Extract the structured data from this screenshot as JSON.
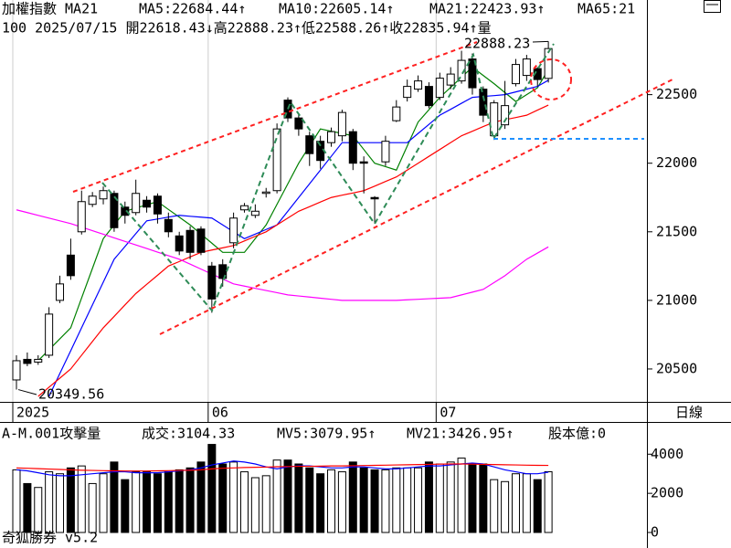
{
  "header": {
    "line1": [
      {
        "text": "加權指數 MA21",
        "color": "#000000"
      },
      {
        "text": "MA5:22684.44↑",
        "color": "#008000"
      },
      {
        "text": "MA10:22605.14↑",
        "color": "#0000ff"
      },
      {
        "text": "MA21:22423.93↑",
        "color": "#ff0000"
      },
      {
        "text": "MA65:21",
        "color": "#ff00ff"
      }
    ],
    "line2": "100 2025/07/15 開22618.43↓高22888.23↑低22588.26↑收22835.94↑量",
    "period": "日線"
  },
  "footer": "奇狐勝券 v5.2",
  "chart_data": [
    {
      "type": "candlestick",
      "open": [
        20420,
        20570,
        20550,
        20600,
        21000,
        21330,
        21500,
        21700,
        21740,
        21780,
        21680,
        21640,
        21730,
        21760,
        21590,
        21470,
        21510,
        21520,
        21250,
        21260,
        21420,
        21660,
        21620,
        21780,
        21800,
        22460,
        22330,
        22200,
        22160,
        22150,
        22200,
        22230,
        22010,
        21750,
        22010,
        22310,
        22480,
        22540,
        22560,
        22480,
        22570,
        22600,
        22760,
        22540,
        22200,
        22280,
        22580,
        22640,
        22690,
        22618.43
      ],
      "high": [
        20600,
        20620,
        20600,
        20950,
        21180,
        21450,
        21800,
        21790,
        21830,
        21800,
        21720,
        21880,
        21760,
        21780,
        21640,
        21500,
        21540,
        21540,
        21280,
        21300,
        21640,
        21710,
        21700,
        21820,
        22290,
        22480,
        22360,
        22230,
        22200,
        22260,
        22390,
        22250,
        22050,
        21760,
        22200,
        22460,
        22610,
        22640,
        22590,
        22660,
        22700,
        22820,
        22800,
        22560,
        22460,
        22600,
        22760,
        22790,
        22700,
        22888.23
      ],
      "low": [
        20349.56,
        20520,
        20530,
        20580,
        20980,
        21150,
        21480,
        21680,
        21700,
        21500,
        21560,
        21620,
        21640,
        21560,
        21460,
        21330,
        21300,
        21330,
        20910,
        21100,
        21380,
        21640,
        21600,
        21750,
        21780,
        22300,
        22200,
        21980,
        21960,
        22120,
        22160,
        21950,
        21780,
        21560,
        21980,
        22300,
        22450,
        22520,
        22400,
        22460,
        22540,
        22580,
        22500,
        22300,
        22170,
        22250,
        22560,
        22600,
        22560,
        22588.26
      ],
      "close": [
        20560,
        20540,
        20570,
        20900,
        21120,
        21180,
        21720,
        21760,
        21800,
        21530,
        21620,
        21780,
        21680,
        21630,
        21500,
        21360,
        21350,
        21350,
        21010,
        21160,
        21600,
        21690,
        21650,
        21790,
        22250,
        22330,
        22250,
        22070,
        22020,
        22230,
        22370,
        22000,
        22000,
        21740,
        22160,
        22410,
        22560,
        22600,
        22420,
        22620,
        22650,
        22750,
        22550,
        22350,
        22440,
        22420,
        22720,
        22760,
        22610,
        22835.94
      ],
      "series": [
        {
          "name": "MA5",
          "color": "#008000",
          "values": [
            null,
            null,
            20560,
            20640,
            20720,
            20800,
            21017,
            21233,
            21450,
            21550,
            21650,
            21673,
            21697,
            21720,
            21663,
            21607,
            21550,
            21483,
            21417,
            21350,
            21350,
            21350,
            21450,
            21550,
            21700,
            21850,
            22000,
            22125,
            22250,
            22233,
            22217,
            22200,
            22100,
            22000,
            21975,
            21950,
            22125,
            22300,
            22390,
            22480,
            22553,
            22627,
            22700,
            22640,
            22580,
            22515,
            22450,
            22500,
            22550,
            22684.44
          ]
        },
        {
          "name": "MA10",
          "color": "#0000ff",
          "values": [
            null,
            null,
            null,
            20300,
            20467,
            20633,
            20800,
            20967,
            21133,
            21300,
            21393,
            21487,
            21580,
            21593,
            21607,
            21620,
            21613,
            21607,
            21600,
            21550,
            21500,
            21450,
            21483,
            21517,
            21550,
            21650,
            21750,
            21850,
            21950,
            22050,
            22150,
            22150,
            22150,
            22150,
            22150,
            22150,
            22150,
            22217,
            22283,
            22350,
            22393,
            22437,
            22480,
            22487,
            22493,
            22500,
            22520,
            22540,
            22560,
            22605.14
          ]
        },
        {
          "name": "MA21",
          "color": "#ff0000",
          "values": [
            null,
            null,
            20300,
            20367,
            20433,
            20500,
            20600,
            20700,
            20800,
            20883,
            20967,
            21050,
            21117,
            21183,
            21250,
            21283,
            21317,
            21350,
            21367,
            21383,
            21400,
            21433,
            21467,
            21500,
            21550,
            21600,
            21650,
            21683,
            21717,
            21750,
            21767,
            21783,
            21800,
            21833,
            21867,
            21900,
            21950,
            22000,
            22050,
            22100,
            22150,
            22200,
            22233,
            22267,
            22300,
            22317,
            22333,
            22350,
            22387,
            22423.93
          ]
        },
        {
          "name": "MA65",
          "color": "#ff00ff",
          "values": [
            21660,
            21640,
            21620,
            21600,
            21580,
            21560,
            21534,
            21508,
            21482,
            21456,
            21430,
            21404,
            21378,
            21352,
            21326,
            21300,
            21264,
            21228,
            21192,
            21156,
            21120,
            21104,
            21088,
            21072,
            21056,
            21040,
            21032,
            21024,
            21016,
            21008,
            21000,
            21000,
            21000,
            21000,
            21000,
            21000,
            21004,
            21008,
            21012,
            21016,
            21020,
            21040,
            21060,
            21080,
            21130,
            21180,
            21240,
            21300,
            21345,
            21390
          ]
        }
      ],
      "ylim": [
        20260,
        23190
      ],
      "yticks": [
        20500,
        21000,
        21500,
        22000,
        22500
      ],
      "xticks": [
        {
          "value": 0,
          "label": "2025"
        },
        {
          "value": 18,
          "label": "06"
        },
        {
          "value": 39,
          "label": "07"
        }
      ],
      "annotations": {
        "low_label": "20349.56",
        "high_label": "22888.23"
      }
    },
    {
      "type": "bar",
      "title": [
        {
          "text": "A-M.001攻擊量",
          "color": "#000000"
        },
        {
          "text": "成交:3104.33",
          "color": "#008000"
        },
        {
          "text": "MV5:3079.95↑",
          "color": "#0000ff"
        },
        {
          "text": "MV21:3426.95↑",
          "color": "#ff0000"
        },
        {
          "text": "股本億:0",
          "color": "#ff00ff"
        }
      ],
      "values": [
        3200,
        2500,
        2300,
        3100,
        3000,
        3300,
        3400,
        2500,
        3000,
        3600,
        2700,
        3100,
        3100,
        3000,
        3100,
        3200,
        3300,
        3600,
        4500,
        3500,
        3600,
        3100,
        2800,
        2900,
        3700,
        3700,
        3500,
        3300,
        3000,
        3200,
        3100,
        3600,
        3300,
        3200,
        3200,
        3300,
        3300,
        3300,
        3600,
        3500,
        3600,
        3800,
        3500,
        3500,
        2700,
        2600,
        3000,
        3000,
        2700,
        3104.33
      ],
      "series": [
        {
          "name": "MV5",
          "color": "#0000ff",
          "values": [
            3200,
            3150,
            3050,
            2950,
            2900,
            2900,
            2950,
            3000,
            3050,
            3100,
            3100,
            3050,
            3050,
            3050,
            3100,
            3150,
            3200,
            3300,
            3450,
            3550,
            3650,
            3600,
            3500,
            3350,
            3250,
            3350,
            3400,
            3400,
            3350,
            3300,
            3300,
            3350,
            3350,
            3300,
            3250,
            3250,
            3300,
            3350,
            3400,
            3400,
            3450,
            3500,
            3550,
            3500,
            3350,
            3200,
            3100,
            3000,
            3000,
            3079.95
          ]
        },
        {
          "name": "MV21",
          "color": "#ff0000",
          "values": [
            3300,
            3280,
            3260,
            3240,
            3220,
            3200,
            3180,
            3170,
            3160,
            3150,
            3140,
            3140,
            3140,
            3150,
            3160,
            3170,
            3180,
            3200,
            3250,
            3280,
            3300,
            3320,
            3330,
            3340,
            3360,
            3370,
            3380,
            3380,
            3390,
            3400,
            3400,
            3410,
            3420,
            3430,
            3440,
            3450,
            3460,
            3470,
            3480,
            3490,
            3500,
            3500,
            3490,
            3480,
            3470,
            3460,
            3450,
            3440,
            3430,
            3426.95
          ]
        }
      ],
      "ylim": [
        0,
        5600
      ],
      "yticks": [
        0,
        2000,
        4000
      ]
    }
  ]
}
